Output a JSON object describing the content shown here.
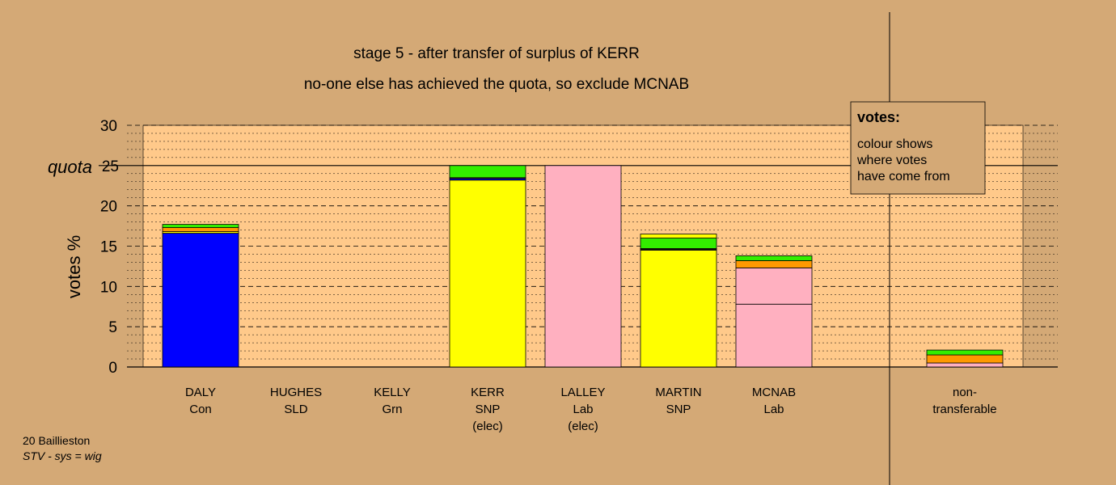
{
  "chart_data": {
    "type": "bar",
    "title": "stage 5 - after transfer of surplus of KERR",
    "subtitle": "no-one else has achieved the quota, so exclude MCNAB",
    "ylabel": "votes %",
    "ylim": [
      0,
      30
    ],
    "yticks": [
      0,
      5,
      10,
      15,
      20,
      25,
      30
    ],
    "quota_label": "quota",
    "quota": 25,
    "categories": [
      {
        "name": "DALY",
        "party": "Con",
        "note": ""
      },
      {
        "name": "HUGHES",
        "party": "SLD",
        "note": ""
      },
      {
        "name": "KELLY",
        "party": "Grn",
        "note": ""
      },
      {
        "name": "KERR",
        "party": "SNP",
        "note": "(elec)"
      },
      {
        "name": "LALLEY",
        "party": "Lab",
        "note": "(elec)"
      },
      {
        "name": "MARTIN",
        "party": "SNP",
        "note": ""
      },
      {
        "name": "MCNAB",
        "party": "Lab",
        "note": ""
      },
      {
        "name": "non-",
        "party": "transferable",
        "note": ""
      }
    ],
    "stacks": [
      [
        {
          "value": 16.6,
          "color": "#0000ff"
        },
        {
          "value": 0.2,
          "color": "#ffff00"
        },
        {
          "value": 0.5,
          "color": "#ff9900"
        },
        {
          "value": 0.4,
          "color": "#33ee00"
        }
      ],
      [],
      [],
      [
        {
          "value": 23.2,
          "color": "#ffff00"
        },
        {
          "value": 0.2,
          "color": "#0000ff"
        },
        {
          "value": 0.1,
          "color": "#ff9900"
        },
        {
          "value": 1.5,
          "color": "#33ee00"
        }
      ],
      [
        {
          "value": 25.0,
          "color": "#ffb0c0"
        }
      ],
      [
        {
          "value": 14.5,
          "color": "#ffff00"
        },
        {
          "value": 0.1,
          "color": "#0000ff"
        },
        {
          "value": 0.1,
          "color": "#ff9900"
        },
        {
          "value": 1.3,
          "color": "#33ee00"
        },
        {
          "value": 0.5,
          "color": "#ffff00"
        }
      ],
      [
        {
          "value": 7.8,
          "color": "#ffb0c0"
        },
        {
          "value": 4.5,
          "color": "#ffb0c0"
        },
        {
          "value": 0.9,
          "color": "#ff9900"
        },
        {
          "value": 0.6,
          "color": "#33ee00"
        }
      ],
      [
        {
          "value": 0.5,
          "color": "#ffb0c0"
        },
        {
          "value": 1.0,
          "color": "#ff9900"
        },
        {
          "value": 0.6,
          "color": "#33ee00"
        }
      ]
    ]
  },
  "legend": {
    "title": "votes:",
    "lines": [
      "colour shows",
      "where votes",
      "have come from"
    ]
  },
  "footer": {
    "line1": "20 Baillieston",
    "line2": "STV - sys = wig"
  },
  "colors": {
    "background": "#d4a976",
    "plot_area": "#ffc98a",
    "gridline": "#000000"
  }
}
